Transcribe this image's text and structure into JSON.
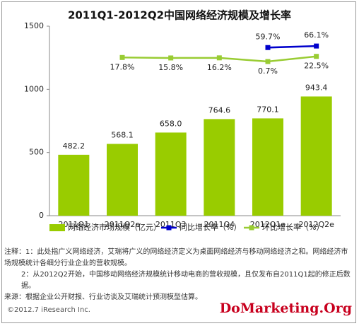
{
  "chart_data": {
    "type": "bar",
    "title": "2011Q1-2012Q2中国网络经济规模及增长率",
    "categories": [
      "2011Q1",
      "2011Q2e",
      "2011Q3",
      "2011Q4",
      "2012Q1e",
      "2012Q2e"
    ],
    "ylim": [
      0,
      1500
    ],
    "yticks": [
      0,
      500,
      1000,
      1500
    ],
    "y2lim": [
      -650,
      150
    ],
    "series": [
      {
        "name": "网络经济市场规模（亿元）",
        "type": "bar",
        "color": "#99cc00",
        "values": [
          482.2,
          568.1,
          658.0,
          764.6,
          770.1,
          943.4
        ],
        "value_labels": [
          "482.2",
          "568.1",
          "658.0",
          "764.6",
          "770.1",
          "943.4"
        ]
      },
      {
        "name": "同比增长率（%）",
        "type": "line",
        "axis": "y2",
        "color": "#0000cc",
        "values": [
          null,
          null,
          null,
          null,
          59.7,
          66.1
        ],
        "value_labels": [
          null,
          null,
          null,
          null,
          "59.7%",
          "66.1%"
        ]
      },
      {
        "name": "环比增长率（%）",
        "type": "line",
        "axis": "y2",
        "color": "#99cc33",
        "values": [
          null,
          17.8,
          15.8,
          16.2,
          0.7,
          22.5
        ],
        "value_labels": [
          null,
          "17.8%",
          "15.8%",
          "16.2%",
          "0.7%",
          "22.5%"
        ]
      }
    ]
  },
  "notes": [
    "注释：1：此处指广义网络经济，艾瑞将广义的网络经济定义为桌面网络经济与移动网络经济之和。网络经济市场规模统计各细分行业企业的营收规模。",
    "2：从2012Q2开始，中国移动网络经济规模统计移动电商的营收规模，且仅发布自2011Q1起的修正后数据。",
    "来源：根据企业公开财报、行业访谈及艾瑞统计预测模型估算。"
  ],
  "copyright": "©2012.7 iResearch Inc.",
  "watermark": "DoMarketing.Org"
}
